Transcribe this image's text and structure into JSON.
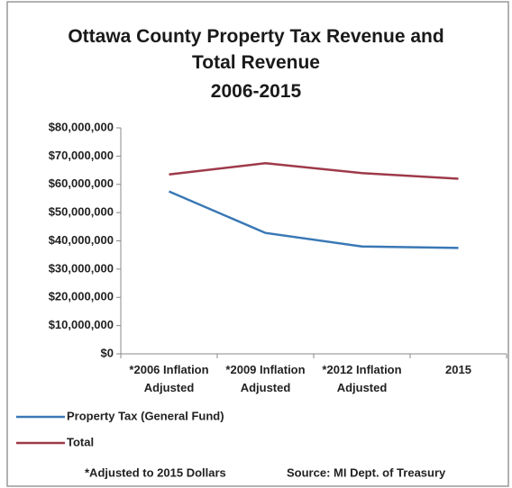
{
  "chart_data": {
    "type": "line",
    "title": "Ottawa County Property Tax Revenue and Total Revenue",
    "subtitle": "2006-2015",
    "categories": [
      "*2006 Inflation Adjusted",
      "*2009 Inflation Adjusted",
      "*2012 Inflation Adjusted",
      "2015"
    ],
    "series": [
      {
        "name": "Property Tax (General Fund)",
        "color": "#3a78b5",
        "values": [
          57500000,
          42800000,
          38000000,
          37500000
        ]
      },
      {
        "name": "Total",
        "color": "#9e3a4a",
        "values": [
          63500000,
          67500000,
          64000000,
          62000000
        ]
      }
    ],
    "ylim": [
      0,
      80000000
    ],
    "yticks": [
      {
        "value": 0,
        "label": "$0"
      },
      {
        "value": 10000000,
        "label": "$10,000,000"
      },
      {
        "value": 20000000,
        "label": "$20,000,000"
      },
      {
        "value": 30000000,
        "label": "$30,000,000"
      },
      {
        "value": 40000000,
        "label": "$40,000,000"
      },
      {
        "value": 50000000,
        "label": "$50,000,000"
      },
      {
        "value": 60000000,
        "label": "$60,000,000"
      },
      {
        "value": 70000000,
        "label": "$70,000,000"
      },
      {
        "value": 80000000,
        "label": "$80,000,000"
      }
    ],
    "grid": false,
    "legend": "bottom",
    "notes": [
      "*Adjusted to 2015 Dollars",
      "Source: MI Dept. of Treasury"
    ]
  }
}
